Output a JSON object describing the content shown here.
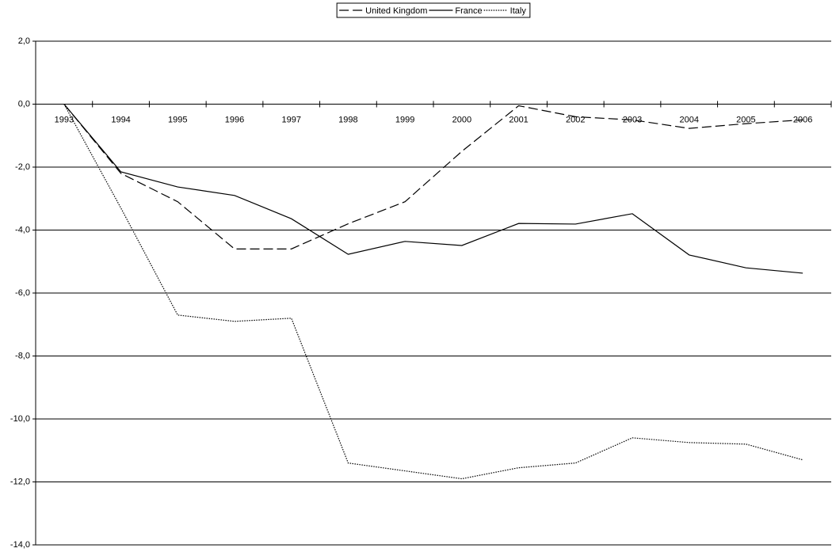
{
  "chart_data": {
    "type": "line",
    "categories": [
      "1993",
      "1994",
      "1995",
      "1996",
      "1997",
      "1998",
      "1999",
      "2000",
      "2001",
      "2002",
      "2003",
      "2004",
      "2005",
      "2006"
    ],
    "series": [
      {
        "name": "United Kingdom",
        "color": "#000000",
        "style": "dashed",
        "values": [
          0,
          -2.2,
          -3.1,
          -4.6,
          -4.6,
          -3.8,
          -3.1,
          -1.5,
          -0.05,
          -0.4,
          -0.5,
          -0.77,
          -0.62,
          -0.5
        ]
      },
      {
        "name": "France",
        "color": "#000000",
        "style": "solid",
        "values": [
          0,
          -2.15,
          -2.63,
          -2.9,
          -3.64,
          -4.77,
          -4.36,
          -4.49,
          -3.79,
          -3.81,
          -3.48,
          -4.79,
          -5.2,
          -5.37
        ]
      },
      {
        "name": "Italy",
        "color": "#000000",
        "style": "dotted",
        "values": [
          0,
          -3.3,
          -6.7,
          -6.9,
          -6.8,
          -11.4,
          -11.65,
          -11.9,
          -11.55,
          -11.4,
          -10.6,
          -10.75,
          -10.8,
          -11.3
        ]
      }
    ],
    "ylim": [
      -14,
      2
    ],
    "yticks": [
      {
        "value": -14,
        "label": "-14,0"
      },
      {
        "value": -12,
        "label": "-12,0"
      },
      {
        "value": -10,
        "label": "-10,0"
      },
      {
        "value": -8,
        "label": "-8,0"
      },
      {
        "value": -6,
        "label": "-6,0"
      },
      {
        "value": -4,
        "label": "-4,0"
      },
      {
        "value": -2,
        "label": "-2,0"
      },
      {
        "value": 0,
        "label": "0,0"
      },
      {
        "value": 2,
        "label": "2,0"
      }
    ],
    "grid": true,
    "legend": "top"
  }
}
